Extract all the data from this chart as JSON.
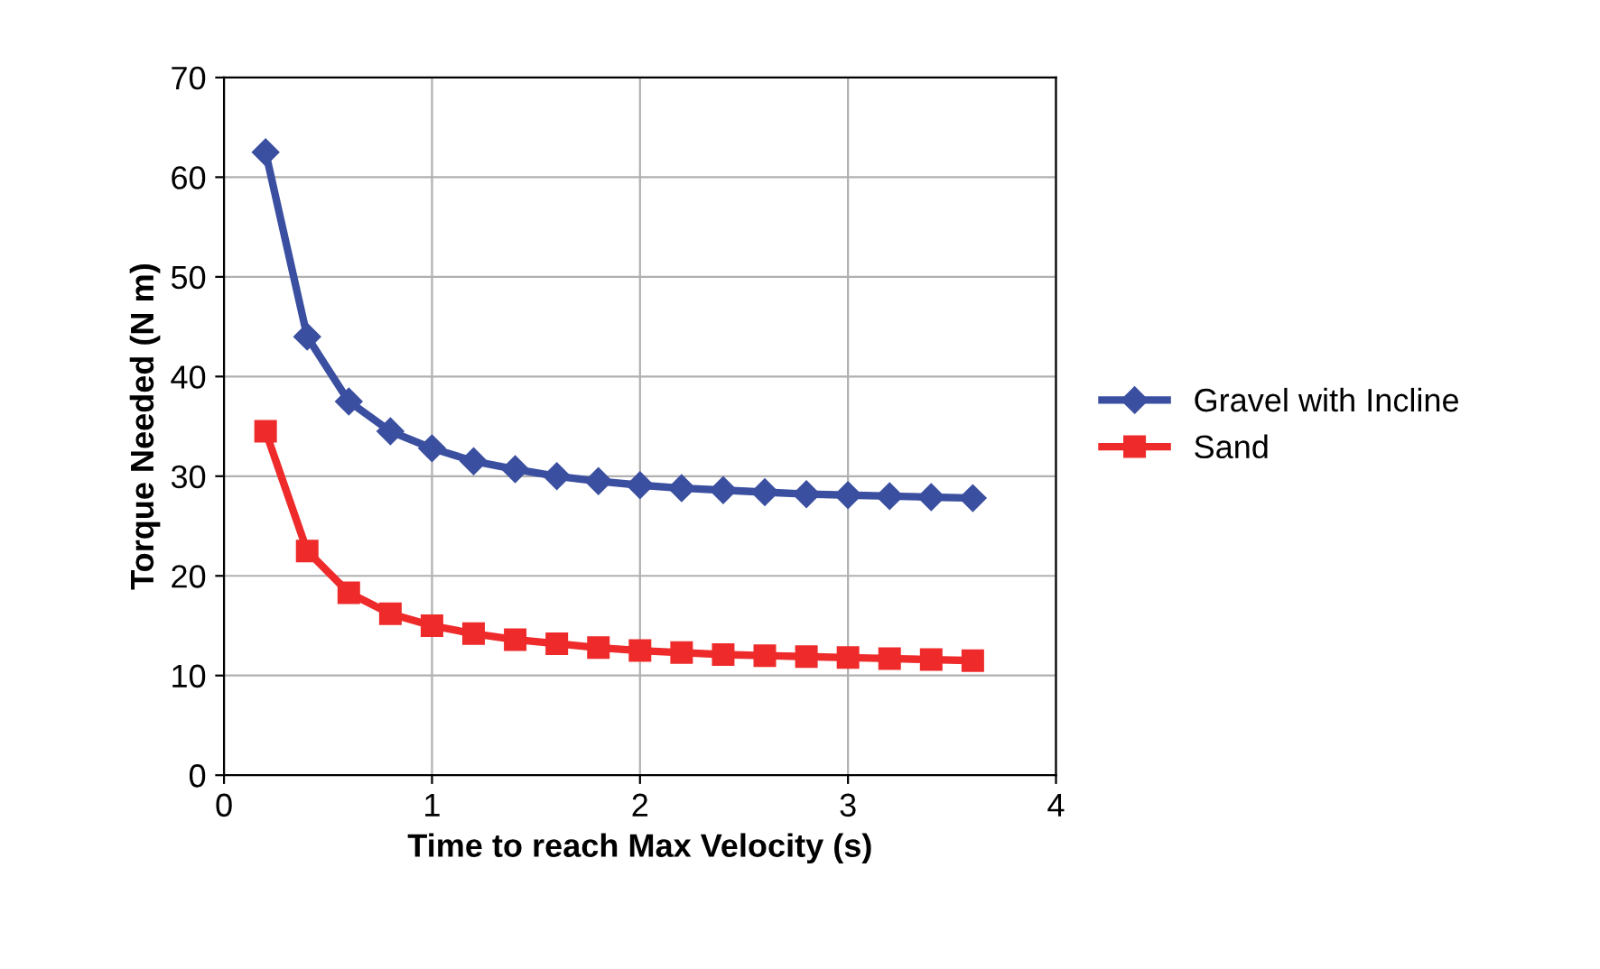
{
  "chart_data": {
    "type": "line",
    "xlabel": "Time to reach Max Velocity (s)",
    "ylabel": "Torque Needed (N m)",
    "x": [
      0.2,
      0.4,
      0.6,
      0.8,
      1.0,
      1.2,
      1.4,
      1.6,
      1.8,
      2.0,
      2.2,
      2.4,
      2.6,
      2.8,
      3.0,
      3.2,
      3.4,
      3.6
    ],
    "series": [
      {
        "name": "Gravel with Incline",
        "color": "#3b4fa0",
        "marker": "diamond",
        "values": [
          62.5,
          44,
          37.5,
          34.5,
          32.8,
          31.5,
          30.7,
          30,
          29.5,
          29.1,
          28.8,
          28.6,
          28.4,
          28.2,
          28.1,
          28,
          27.9,
          27.8
        ]
      },
      {
        "name": "Sand",
        "color": "#ee2a2a",
        "marker": "square",
        "values": [
          34.5,
          22.5,
          18.3,
          16.2,
          15,
          14.2,
          13.6,
          13.2,
          12.8,
          12.5,
          12.3,
          12.1,
          12,
          11.9,
          11.8,
          11.7,
          11.6,
          11.5
        ]
      }
    ],
    "xlim": [
      0,
      4
    ],
    "xticks": [
      0,
      1,
      2,
      3,
      4
    ],
    "ylim": [
      0,
      70
    ],
    "yticks": [
      0,
      10,
      20,
      30,
      40,
      50,
      60,
      70
    ],
    "grid": true,
    "legend": "right",
    "line_style": "solid"
  }
}
